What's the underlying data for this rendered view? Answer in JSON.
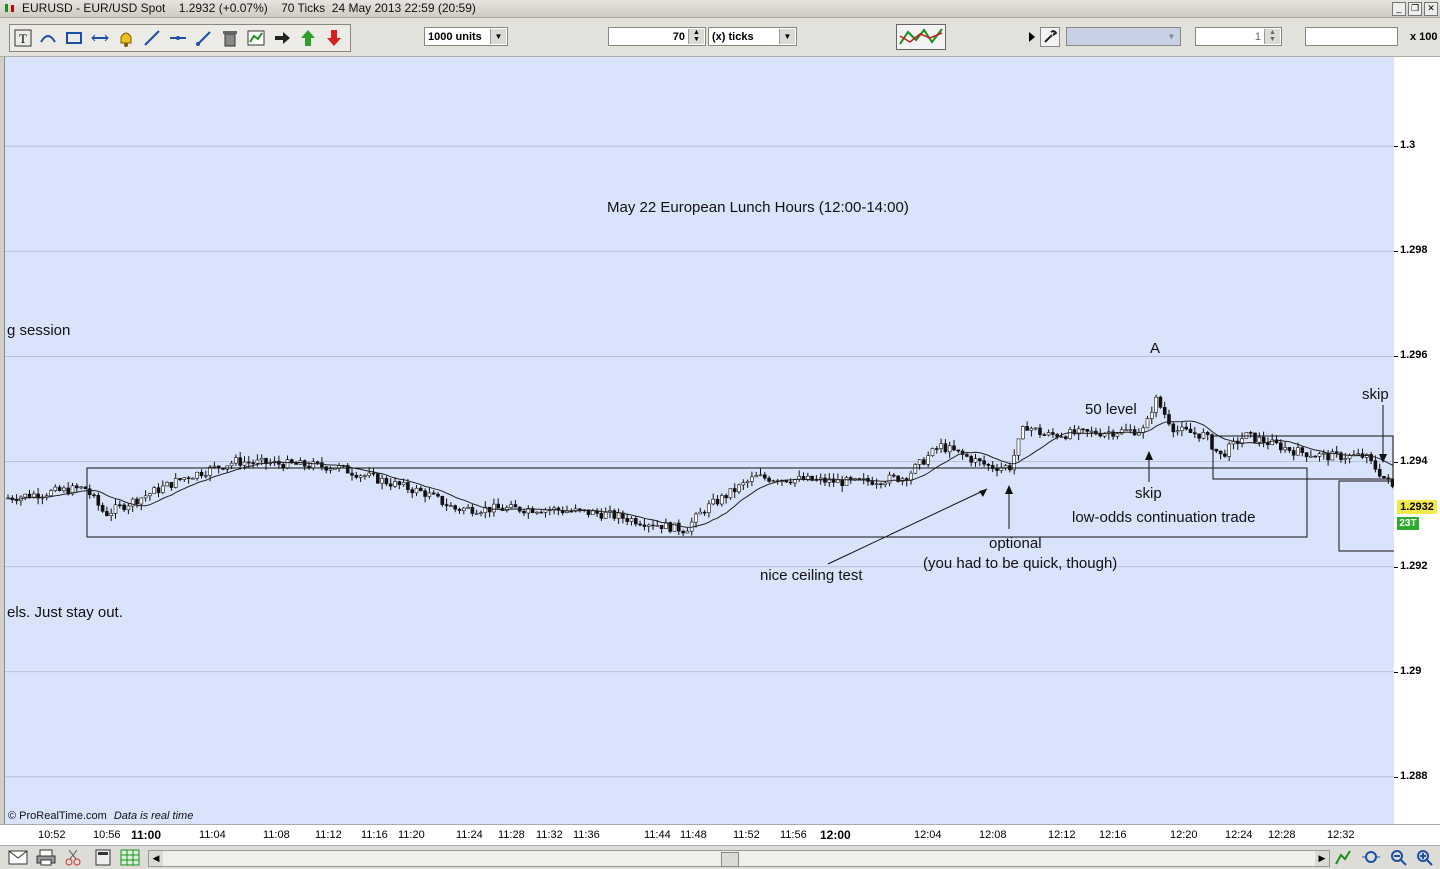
{
  "window": {
    "title": "EURUSD - EUR/USD Spot    1.2932 (+0.07%)    70 Ticks  24 May 2013 22:59 (20:59)"
  },
  "toolbar": {
    "units_value": "1000 units",
    "ticks_value": "70",
    "ticks_unit": "(x) ticks",
    "right_spinner_value": "1",
    "scale_label": "x 100"
  },
  "chart": {
    "title": "May 22 European Lunch Hours (12:00-14:00)",
    "annotations": {
      "session": "g session",
      "stay_out": "els. Just stay out.",
      "A": "A",
      "level50": "50 level",
      "skip1": "skip",
      "skip2": "skip",
      "low_odds": "low-odds continuation trade",
      "optional": "optional",
      "quick": "(you had to be quick, though)",
      "ceiling": "nice ceiling test"
    },
    "footer_brand": "© ProRealTime.com",
    "footer_status": "Data is real time",
    "current_price": "1.2932",
    "bar_count_badge": "23T"
  },
  "chart_data": {
    "type": "candlestick",
    "y_ticks": [
      "1.3",
      "1.298",
      "1.296",
      "1.294",
      "1.292",
      "1.29",
      "1.288"
    ],
    "y_values": [
      1.3,
      1.298,
      1.296,
      1.294,
      1.292,
      1.29,
      1.288
    ],
    "ylim": [
      1.2871,
      1.3017
    ],
    "x_ticks": [
      "10:52",
      "10:56",
      "11:00",
      "11:04",
      "11:08",
      "11:12",
      "11:16",
      "11:20",
      "11:24",
      "11:28",
      "11:32",
      "11:36",
      "11:44",
      "11:48",
      "11:52",
      "11:56",
      "12:00",
      "12:04",
      "12:08",
      "12:12",
      "12:16",
      "12:20",
      "12:24",
      "12:28",
      "12:32"
    ],
    "bold_x_ticks": [
      "11:00",
      "12:00"
    ],
    "current_price": 1.2932,
    "grid": true
  }
}
